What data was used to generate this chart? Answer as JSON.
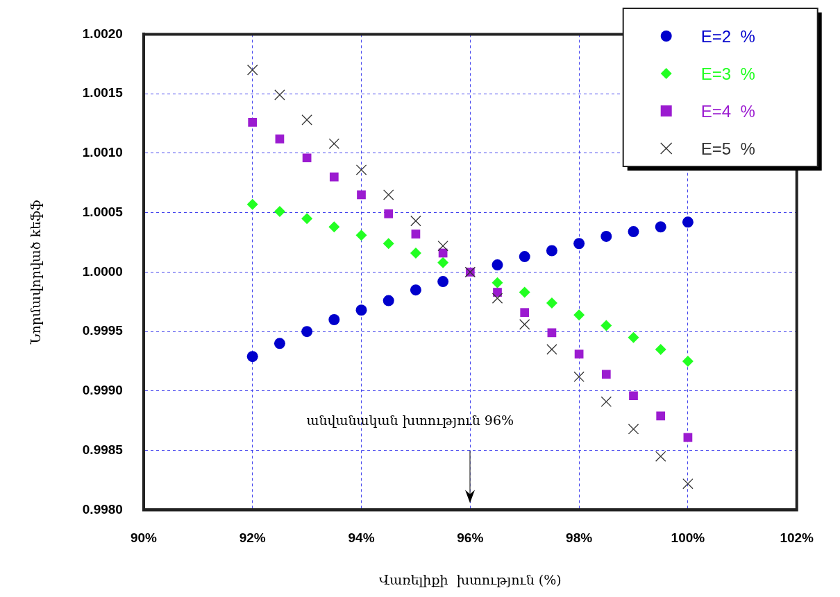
{
  "chart_data": {
    "type": "scatter",
    "xlabel": "Վառելիքի  խտություն (%)",
    "ylabel": "Նորմավորված kեֆֆ",
    "x": [
      92,
      92.5,
      93,
      93.5,
      94,
      94.5,
      95,
      95.5,
      96,
      96.5,
      97,
      97.5,
      98,
      98.5,
      99,
      99.5,
      100
    ],
    "series": [
      {
        "name": "E=2  %",
        "color": "#0000cc",
        "marker": "circle",
        "values": [
          0.99929,
          0.9994,
          0.9995,
          0.9996,
          0.99968,
          0.99976,
          0.99985,
          0.99992,
          null,
          1.00006,
          1.00013,
          1.00018,
          1.00024,
          1.0003,
          1.00034,
          1.00038,
          1.00042
        ]
      },
      {
        "name": "E=3  %",
        "color": "#22ff22",
        "marker": "diamond",
        "values": [
          1.00057,
          1.00051,
          1.00045,
          1.00038,
          1.00031,
          1.00024,
          1.00016,
          1.00008,
          null,
          0.99991,
          0.99983,
          0.99974,
          0.99964,
          0.99955,
          0.99945,
          0.99935,
          0.99925
        ]
      },
      {
        "name": "E=4  %",
        "color": "#9b1bd0",
        "marker": "square",
        "values": [
          1.00126,
          1.00112,
          1.00096,
          1.0008,
          1.00065,
          1.00049,
          1.00032,
          1.00016,
          1.0,
          0.99983,
          0.99966,
          0.99949,
          0.99931,
          0.99914,
          0.99896,
          0.99879,
          0.99861
        ]
      },
      {
        "name": "E=5  %",
        "color": "#333333",
        "marker": "cross",
        "values": [
          1.0017,
          1.00149,
          1.00128,
          1.00108,
          1.00086,
          1.00065,
          1.00043,
          1.00022,
          1.0,
          0.99978,
          0.99956,
          0.99935,
          0.99912,
          0.99891,
          0.99868,
          0.99845,
          0.99822
        ]
      }
    ],
    "xlim": [
      90,
      102
    ],
    "xticks": [
      {
        "value": 90,
        "label": "90%"
      },
      {
        "value": 92,
        "label": "92%"
      },
      {
        "value": 94,
        "label": "94%"
      },
      {
        "value": 96,
        "label": "96%"
      },
      {
        "value": 98,
        "label": "98%"
      },
      {
        "value": 100,
        "label": "100%"
      },
      {
        "value": 102,
        "label": "102%"
      }
    ],
    "ylim": [
      0.998,
      1.002
    ],
    "yticks": [
      {
        "value": 0.998,
        "label": "0.9980"
      },
      {
        "value": 0.9985,
        "label": "0.9985"
      },
      {
        "value": 0.999,
        "label": "0.9990"
      },
      {
        "value": 0.9995,
        "label": "0.9995"
      },
      {
        "value": 1.0,
        "label": "1.0000"
      },
      {
        "value": 1.0005,
        "label": "1.0005"
      },
      {
        "value": 1.001,
        "label": "1.0010"
      },
      {
        "value": 1.0015,
        "label": "1.0015"
      },
      {
        "value": 1.002,
        "label": "1.0020"
      }
    ],
    "grid": true,
    "legend": "top right",
    "annotations": [
      "անվանական խտություն 96%"
    ]
  }
}
